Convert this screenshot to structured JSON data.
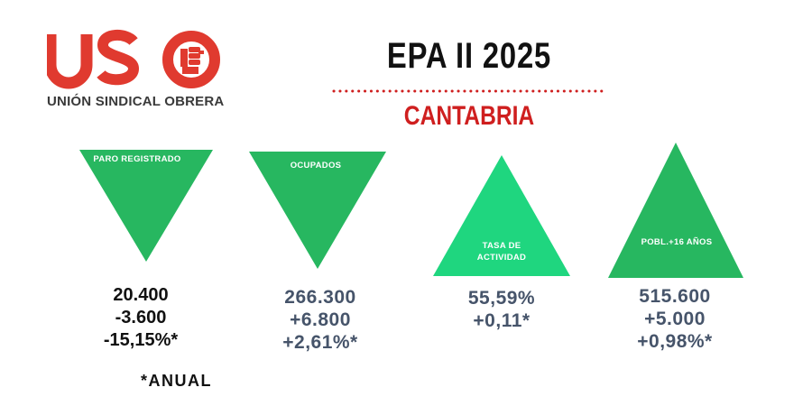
{
  "header": {
    "title": "EPA II 2025",
    "region": "CANTABRIA"
  },
  "logo": {
    "letters": "USO",
    "subtitle": "UNIÓN SINDICAL OBRERA",
    "color": "#e03a2f"
  },
  "indicators": [
    {
      "label": "PARO REGISTRADO",
      "direction": "down",
      "color": "#27b760",
      "values": [
        "20.400",
        "-3.600",
        "-15,15%*"
      ]
    },
    {
      "label": "OCUPADOS",
      "direction": "down",
      "color": "#27b760",
      "values": [
        "266.300",
        "+6.800",
        "+2,61%*"
      ]
    },
    {
      "label_lines": [
        "TASA DE",
        "ACTIVIDAD"
      ],
      "direction": "up",
      "color": "#1fd67f",
      "values": [
        "55,59%",
        "+0,11*"
      ]
    },
    {
      "label": "POBL.+16 AÑOS",
      "direction": "up",
      "color": "#27b760",
      "values": [
        "515.600",
        "+5.000",
        "+0,98%*"
      ]
    }
  ],
  "footnote": "*ANUAL"
}
